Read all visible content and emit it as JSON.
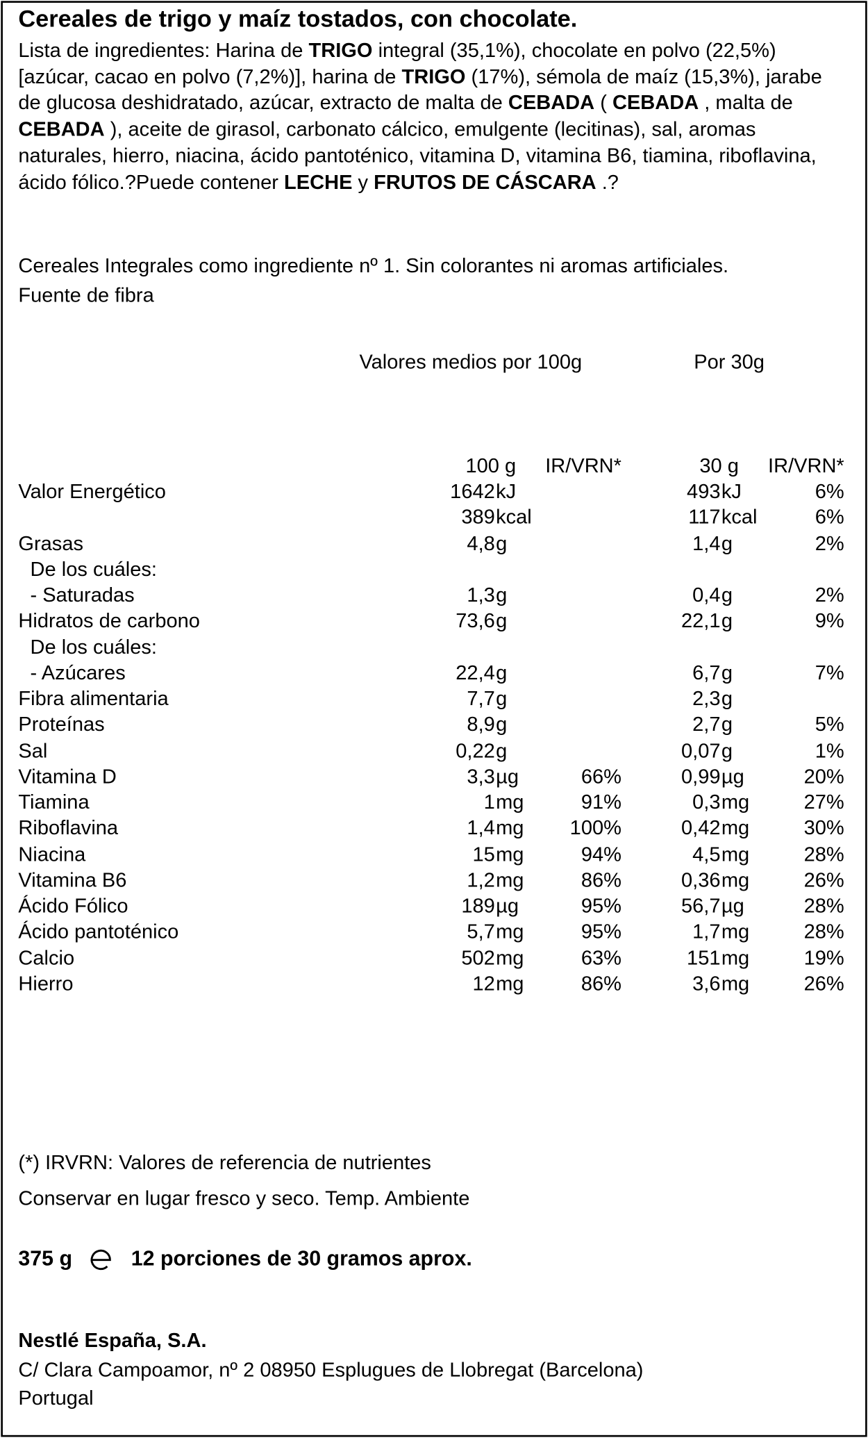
{
  "header": {
    "title": "Cereales de trigo y maíz tostados, con chocolate."
  },
  "ingredients": [
    {
      "text": "Lista de ingredientes: Harina de ",
      "bold": false
    },
    {
      "text": "TRIGO",
      "bold": true
    },
    {
      "text": " integral (35,1%), chocolate en polvo (22,5%) [azúcar, cacao en polvo (7,2%)], harina de ",
      "bold": false
    },
    {
      "text": "TRIGO",
      "bold": true
    },
    {
      "text": " (17%), sémola de maíz (15,3%), jarabe de glucosa deshidratado, azúcar, extracto de malta de ",
      "bold": false
    },
    {
      "text": "CEBADA",
      "bold": true
    },
    {
      "text": " ( ",
      "bold": false
    },
    {
      "text": "CEBADA",
      "bold": true
    },
    {
      "text": " , malta de ",
      "bold": false
    },
    {
      "text": "CEBADA",
      "bold": true
    },
    {
      "text": " ), aceite de girasol, carbonato cálcico, emulgente (lecitinas), sal, aromas naturales, hierro, niacina, ácido pantoténico, vitamina D, vitamina B6, tiamina, riboflavina, ácido fólico.?Puede contener ",
      "bold": false
    },
    {
      "text": "LECHE",
      "bold": true
    },
    {
      "text": " y ",
      "bold": false
    },
    {
      "text": "FRUTOS DE CÁSCARA",
      "bold": true
    },
    {
      "text": " .?",
      "bold": false
    }
  ],
  "claims": [
    "Cereales Integrales como ingrediente nº 1. Sin colorantes ni aromas artificiales.",
    "Fuente de fibra"
  ],
  "table": {
    "group_headers": [
      "Valores medios por 100g",
      "Por 30g"
    ],
    "column_headers": [
      "100 g",
      "IR/VRN*",
      "30 g",
      "IR/VRN*"
    ],
    "rows": [
      {
        "name": "Valor Energético",
        "indent": false,
        "v100": "1642",
        "u100": "kJ",
        "ir100": null,
        "v30": "493",
        "u30": "kJ",
        "ir30": "6%"
      },
      {
        "name": null,
        "indent": false,
        "v100": "389",
        "u100": "kcal",
        "ir100": null,
        "v30": "117",
        "u30": "kcal",
        "ir30": "6%"
      },
      {
        "name": "Grasas",
        "indent": false,
        "v100": "4,8",
        "u100": "g",
        "ir100": null,
        "v30": "1,4",
        "u30": "g",
        "ir30": "2%"
      },
      {
        "name": "De los cuáles:",
        "indent": true,
        "v100": null,
        "u100": null,
        "ir100": null,
        "v30": null,
        "u30": null,
        "ir30": null
      },
      {
        "name": "- Saturadas",
        "indent": true,
        "v100": "1,3",
        "u100": "g",
        "ir100": null,
        "v30": "0,4",
        "u30": "g",
        "ir30": "2%"
      },
      {
        "name": "Hidratos de carbono",
        "indent": false,
        "v100": "73,6",
        "u100": "g",
        "ir100": null,
        "v30": "22,1",
        "u30": "g",
        "ir30": "9%"
      },
      {
        "name": "De los cuáles:",
        "indent": true,
        "v100": null,
        "u100": null,
        "ir100": null,
        "v30": null,
        "u30": null,
        "ir30": null
      },
      {
        "name": "- Azúcares",
        "indent": true,
        "v100": "22,4",
        "u100": "g",
        "ir100": null,
        "v30": "6,7",
        "u30": "g",
        "ir30": "7%"
      },
      {
        "name": "Fibra alimentaria",
        "indent": false,
        "v100": "7,7",
        "u100": "g",
        "ir100": null,
        "v30": "2,3",
        "u30": "g",
        "ir30": null
      },
      {
        "name": "Proteínas",
        "indent": false,
        "v100": "8,9",
        "u100": "g",
        "ir100": null,
        "v30": "2,7",
        "u30": "g",
        "ir30": "5%"
      },
      {
        "name": "Sal",
        "indent": false,
        "v100": "0,22",
        "u100": "g",
        "ir100": null,
        "v30": "0,07",
        "u30": "g",
        "ir30": "1%"
      },
      {
        "name": "Vitamina D",
        "indent": false,
        "v100": "3,3",
        "u100": "µg",
        "ir100": "66%",
        "v30": "0,99",
        "u30": "µg",
        "ir30": "20%"
      },
      {
        "name": "Tiamina",
        "indent": false,
        "v100": "1",
        "u100": "mg",
        "ir100": "91%",
        "v30": "0,3",
        "u30": "mg",
        "ir30": "27%"
      },
      {
        "name": "Riboflavina",
        "indent": false,
        "v100": "1,4",
        "u100": "mg",
        "ir100": "100%",
        "v30": "0,42",
        "u30": "mg",
        "ir30": "30%"
      },
      {
        "name": "Niacina",
        "indent": false,
        "v100": "15",
        "u100": "mg",
        "ir100": "94%",
        "v30": "4,5",
        "u30": "mg",
        "ir30": "28%"
      },
      {
        "name": "Vitamina B6",
        "indent": false,
        "v100": "1,2",
        "u100": "mg",
        "ir100": "86%",
        "v30": "0,36",
        "u30": "mg",
        "ir30": "26%"
      },
      {
        "name": "Ácido Fólico",
        "indent": false,
        "v100": "189",
        "u100": "µg",
        "ir100": "95%",
        "v30": "56,7",
        "u30": "µg",
        "ir30": "28%"
      },
      {
        "name": "Ácido pantoténico",
        "indent": false,
        "v100": "5,7",
        "u100": "mg",
        "ir100": "95%",
        "v30": "1,7",
        "u30": "mg",
        "ir30": "28%"
      },
      {
        "name": "Calcio",
        "indent": false,
        "v100": "502",
        "u100": "mg",
        "ir100": "63%",
        "v30": "151",
        "u30": "mg",
        "ir30": "19%"
      },
      {
        "name": "Hierro",
        "indent": false,
        "v100": "12",
        "u100": "mg",
        "ir100": "86%",
        "v30": "3,6",
        "u30": "mg",
        "ir30": "26%"
      }
    ]
  },
  "footnote": "(*) IRVRN: Valores de referencia de nutrientes",
  "storage": "Conservar en lugar fresco y seco. Temp. Ambiente",
  "net_weight": "375 g",
  "portions": "12 porciones de 30 gramos aprox.",
  "company": {
    "name": "Nestlé España, S.A.",
    "address": "C/ Clara Campoamor, nº 2 08950 Esplugues de Llobregat (Barcelona)",
    "country": "Portugal"
  }
}
